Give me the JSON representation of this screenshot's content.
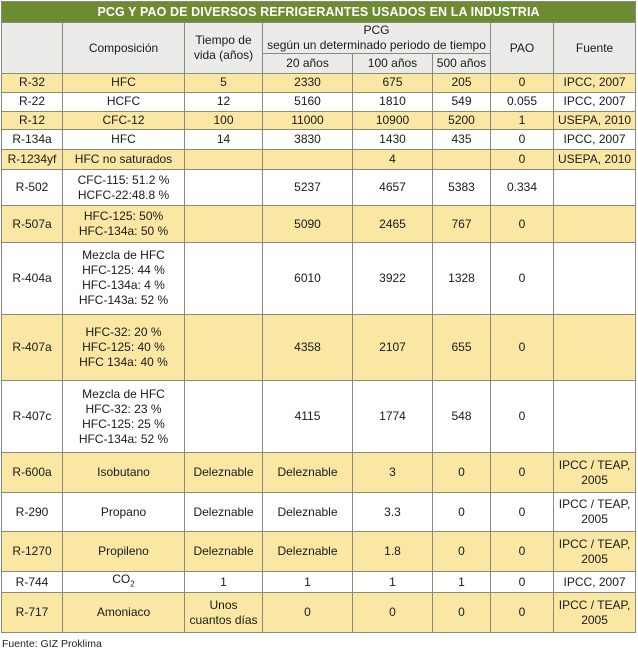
{
  "title": "PCG Y PAO DE DIVERSOS REFRIGERANTES USADOS EN LA INDUSTRIA",
  "headers": {
    "composicion": "Composición",
    "tiempo_line1": "Tiempo de",
    "tiempo_line2": "vida (años)",
    "pcg_line1": "PCG",
    "pcg_line2": "según un determinado periodo de tiempo",
    "y20": "20 años",
    "y100": "100 años",
    "y500": "500 años",
    "pao": "PAO",
    "fuente": "Fuente"
  },
  "rows": [
    {
      "ref": "R-32",
      "comp": [
        "HFC"
      ],
      "vida": [
        "5"
      ],
      "y20": "2330",
      "y100": "675",
      "y500": "205",
      "pao": "0",
      "fuente": [
        "IPCC, 2007"
      ]
    },
    {
      "ref": "R-22",
      "comp": [
        "HCFC"
      ],
      "vida": [
        "12"
      ],
      "y20": "5160",
      "y100": "1810",
      "y500": "549",
      "pao": "0.055",
      "fuente": [
        "IPCC, 2007"
      ]
    },
    {
      "ref": "R-12",
      "comp": [
        "CFC-12"
      ],
      "vida": [
        "100"
      ],
      "y20": "11000",
      "y100": "10900",
      "y500": "5200",
      "pao": "1",
      "fuente": [
        "USEPA, 2010"
      ]
    },
    {
      "ref": "R-134a",
      "comp": [
        "HFC"
      ],
      "vida": [
        "14"
      ],
      "y20": "3830",
      "y100": "1430",
      "y500": "435",
      "pao": "0",
      "fuente": [
        "IPCC, 2007"
      ]
    },
    {
      "ref": "R-1234yf",
      "comp": [
        "HFC no saturados"
      ],
      "vida": [
        ""
      ],
      "y20": "",
      "y100": "4",
      "y500": "",
      "pao": "0",
      "fuente": [
        "USEPA, 2010"
      ]
    },
    {
      "ref": "R-502",
      "comp": [
        "CFC-115: 51.2 %",
        "HCFC-22:48.8 %"
      ],
      "vida": [
        ""
      ],
      "y20": "5237",
      "y100": "4657",
      "y500": "5383",
      "pao": "0.334",
      "fuente": [
        ""
      ]
    },
    {
      "ref": "R-507a",
      "comp": [
        "HFC-125: 50%",
        "HFC-134a: 50 %"
      ],
      "vida": [
        ""
      ],
      "y20": "5090",
      "y100": "2465",
      "y500": "767",
      "pao": "0",
      "fuente": [
        ""
      ]
    },
    {
      "ref": "R-404a",
      "comp": [
        "Mezcla de HFC",
        "HFC-125: 44 %",
        "HFC-134a: 4 %",
        "HFC-143a: 52 %"
      ],
      "vida": [
        ""
      ],
      "y20": "6010",
      "y100": "3922",
      "y500": "1328",
      "pao": "0",
      "fuente": [
        ""
      ]
    },
    {
      "ref": "R-407a",
      "comp": [
        "HFC-32: 20 %",
        "HFC-125: 40 %",
        "HFC 134a: 40 %"
      ],
      "vida": [
        ""
      ],
      "y20": "4358",
      "y100": "2107",
      "y500": "655",
      "pao": "0",
      "fuente": [
        ""
      ]
    },
    {
      "ref": "R-407c",
      "comp": [
        "Mezcla de HFC",
        "HFC-32: 23 %",
        "HFC-125: 25 %",
        "HFC-134a: 52 %"
      ],
      "vida": [
        ""
      ],
      "y20": "4115",
      "y100": "1774",
      "y500": "548",
      "pao": "0",
      "fuente": [
        ""
      ]
    },
    {
      "ref": "R-600a",
      "comp": [
        "Isobutano"
      ],
      "vida": [
        "Deleznable"
      ],
      "y20": "Deleznable",
      "y100": "3",
      "y500": "0",
      "pao": "0",
      "fuente": [
        "IPCC / TEAP,",
        "2005"
      ]
    },
    {
      "ref": "R-290",
      "comp": [
        "Propano"
      ],
      "vida": [
        "Deleznable"
      ],
      "y20": "Deleznable",
      "y100": "3.3",
      "y500": "0",
      "pao": "0",
      "fuente": [
        "IPCC / TEAP,",
        "2005"
      ]
    },
    {
      "ref": "R-1270",
      "comp": [
        "Propileno"
      ],
      "vida": [
        "Deleznable"
      ],
      "y20": "Deleznable",
      "y100": "1.8",
      "y500": "0",
      "pao": "0",
      "fuente": [
        "IPCC / TEAP,",
        "2005"
      ]
    },
    {
      "ref": "R-744",
      "comp": [
        "CO"
      ],
      "comp_sub": "2",
      "vida": [
        "1"
      ],
      "y20": "1",
      "y100": "1",
      "y500": "1",
      "pao": "0",
      "fuente": [
        "IPCC, 2007"
      ]
    },
    {
      "ref": "R-717",
      "comp": [
        "Amoniaco"
      ],
      "vida": [
        "Unos",
        "cuantos días"
      ],
      "y20": "0",
      "y100": "0",
      "y500": "0",
      "pao": "0",
      "fuente": [
        "IPCC / TEAP,",
        "2005"
      ]
    }
  ],
  "source_note": "Fuente: GIZ Proklima"
}
